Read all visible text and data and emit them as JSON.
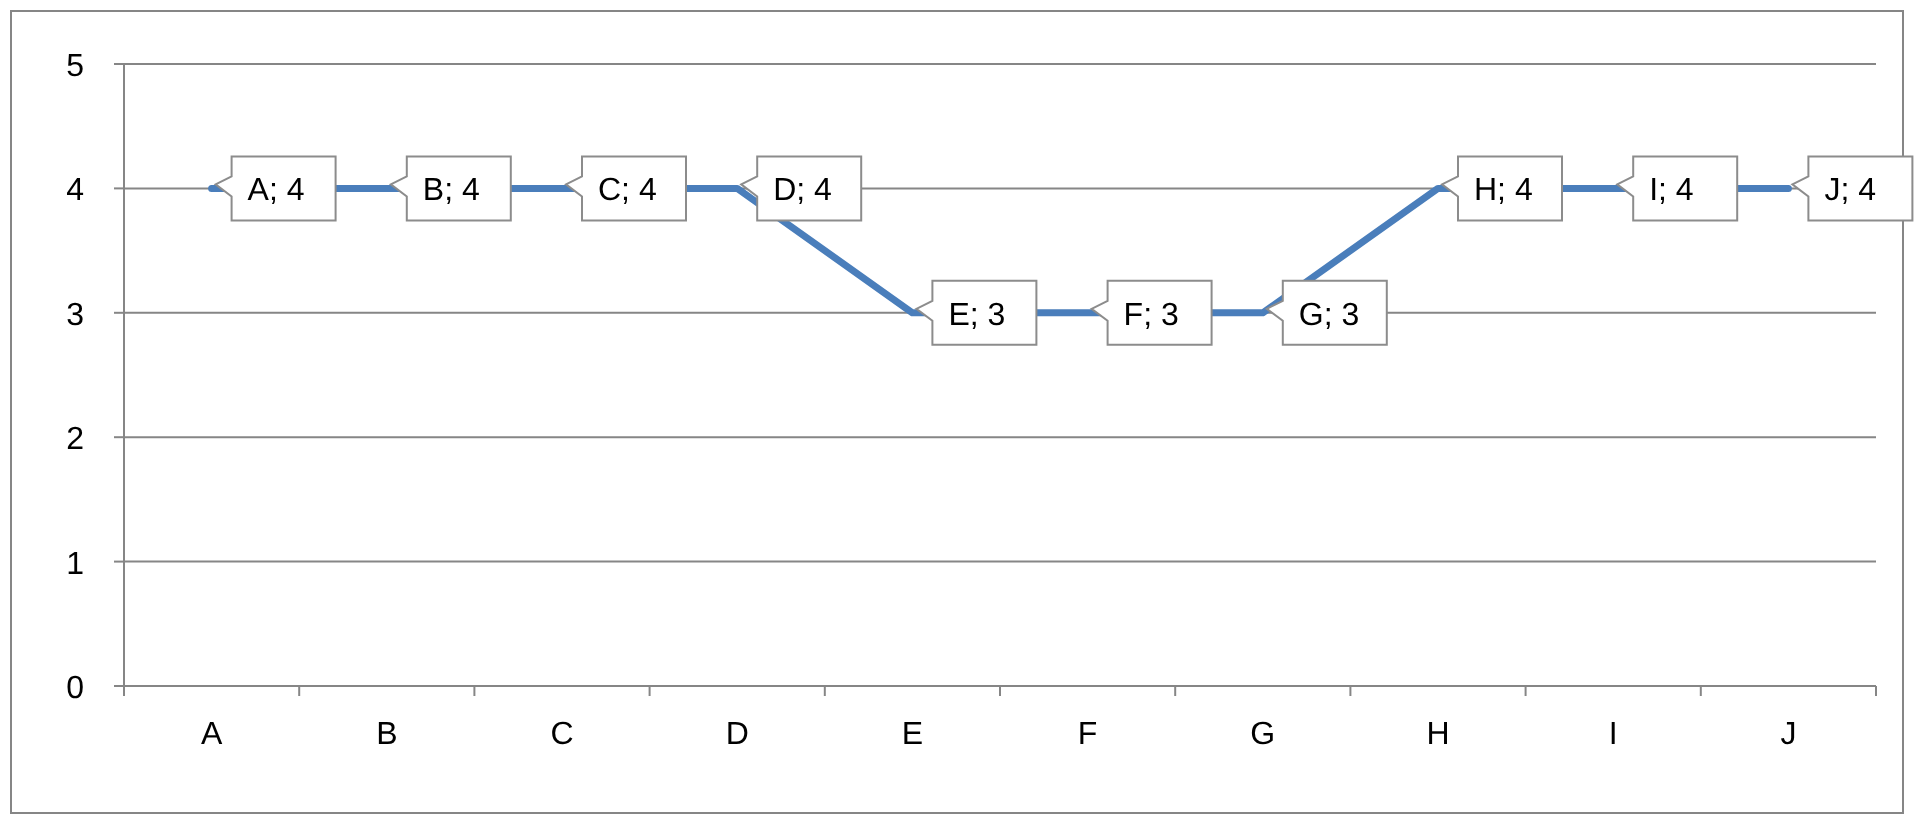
{
  "chart_data": {
    "type": "line",
    "categories": [
      "A",
      "B",
      "C",
      "D",
      "E",
      "F",
      "G",
      "H",
      "I",
      "J"
    ],
    "series": [
      {
        "color": "#4a7ebb",
        "values": [
          4,
          4,
          4,
          4,
          3,
          3,
          3,
          4,
          4,
          4
        ],
        "value_labels": [
          "A; 4",
          "B; 4",
          "C; 4",
          "D; 4",
          "E; 3",
          "F; 3",
          "G; 3",
          "H; 4",
          "I; 4",
          "J; 4"
        ]
      }
    ],
    "ylim": [
      0,
      5
    ],
    "yticks": [
      0,
      1,
      2,
      3,
      4,
      5
    ],
    "grid": "y",
    "marker": "none",
    "line_style": "solid"
  }
}
